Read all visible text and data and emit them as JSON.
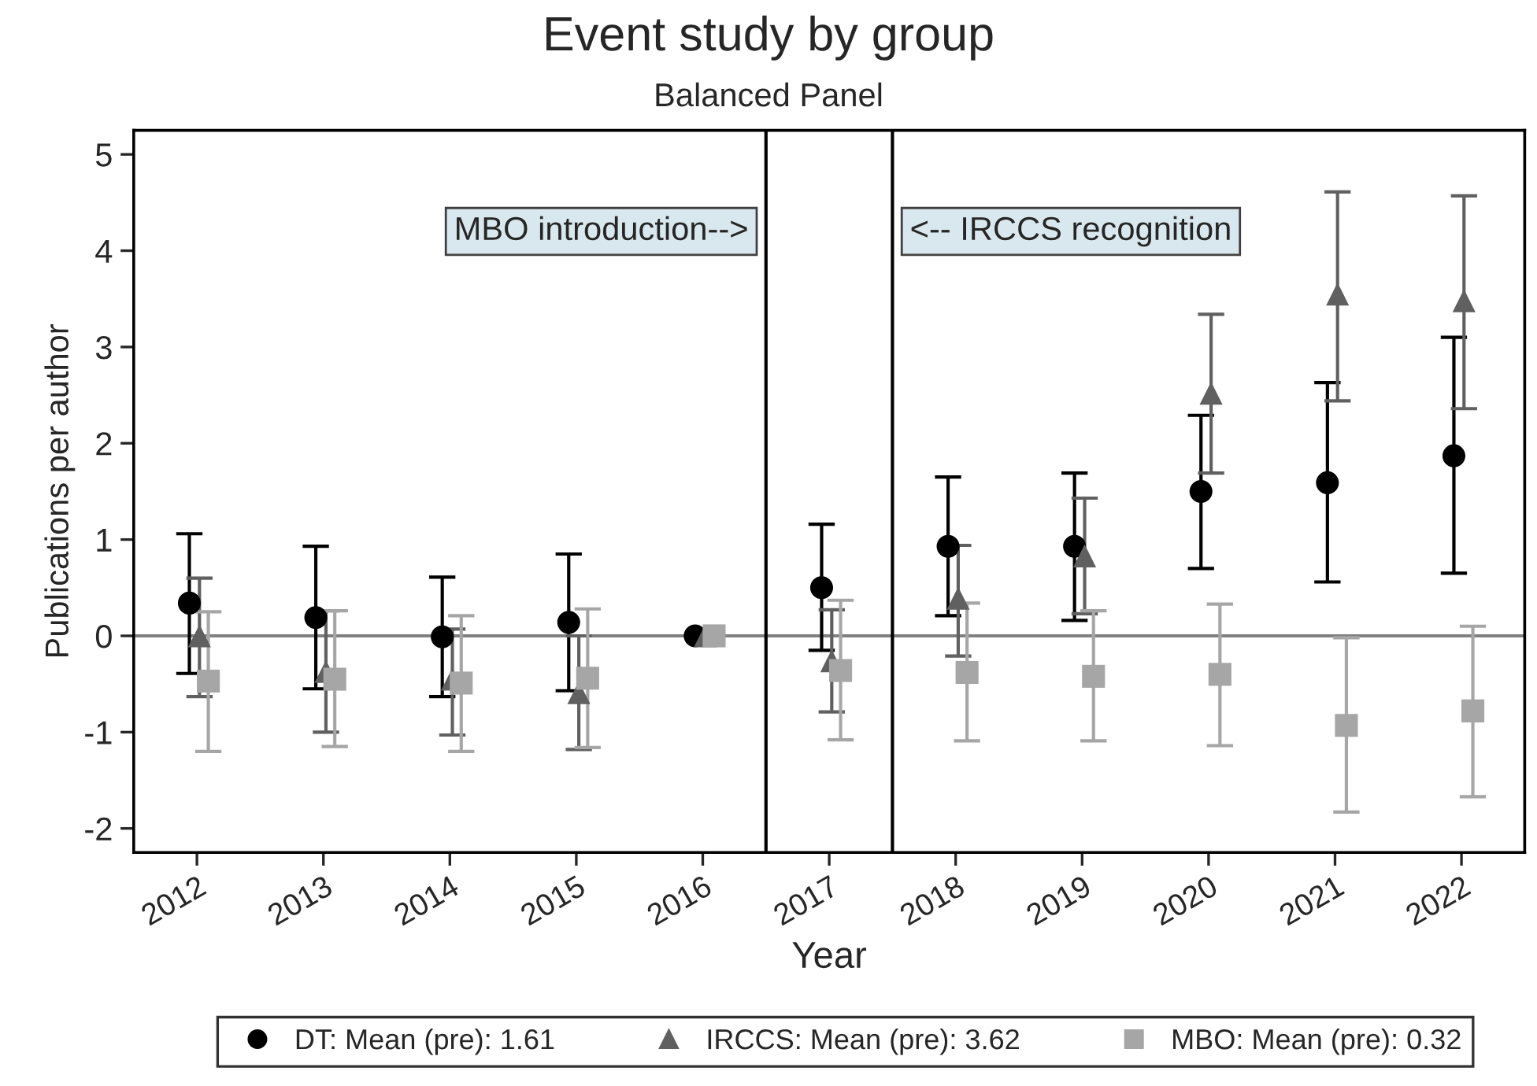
{
  "chart_data": {
    "type": "scatter",
    "title": "Event study by group",
    "subtitle": "Balanced Panel",
    "xlabel": "Year",
    "ylabel": "Publications per author",
    "series": [
      {
        "name": "DT: Mean (pre): 1.61",
        "color": "#000000",
        "marker": "circle",
        "x": [
          2011.94,
          2012.94,
          2013.94,
          2014.94,
          2015.94,
          2016.94,
          2017.94,
          2018.94,
          2019.94,
          2020.94,
          2021.94
        ],
        "values": [
          0.34,
          0.19,
          -0.01,
          0.14,
          0,
          0.5,
          0.93,
          0.93,
          1.5,
          1.59,
          1.87
        ],
        "errors": [
          [
            -0.39,
            1.06
          ],
          [
            -0.55,
            0.93
          ],
          [
            -0.63,
            0.61
          ],
          [
            -0.57,
            0.85
          ],
          null,
          [
            -0.15,
            1.16
          ],
          [
            0.21,
            1.65
          ],
          [
            0.16,
            1.69
          ],
          [
            0.7,
            2.29
          ],
          [
            0.56,
            2.63
          ],
          [
            0.65,
            3.1
          ]
        ]
      },
      {
        "name": "IRCCS: Mean (pre): 3.62",
        "color": "#606060",
        "marker": "triangle",
        "x": [
          2012.02,
          2013.02,
          2014.02,
          2015.02,
          2016.02,
          2017.02,
          2018.02,
          2019.02,
          2020.02,
          2021.02,
          2022.02
        ],
        "values": [
          0.0,
          -0.37,
          -0.45,
          -0.59,
          0,
          -0.26,
          0.39,
          0.83,
          2.52,
          3.55,
          3.48
        ],
        "errors": [
          [
            -0.63,
            0.6
          ],
          [
            -1.0,
            0.26
          ],
          [
            -1.03,
            0.07
          ],
          [
            -1.18,
            0.0
          ],
          null,
          [
            -0.79,
            0.27
          ],
          [
            -0.21,
            0.94
          ],
          [
            0.23,
            1.43
          ],
          [
            1.69,
            3.34
          ],
          [
            2.44,
            4.61
          ],
          [
            2.36,
            4.57
          ]
        ]
      },
      {
        "name": "MBO: Mean (pre): 0.32",
        "color": "#a6a6a6",
        "marker": "square",
        "x": [
          2012.09,
          2013.09,
          2014.09,
          2015.09,
          2016.09,
          2017.09,
          2018.09,
          2019.09,
          2020.09,
          2021.09,
          2022.09
        ],
        "values": [
          -0.47,
          -0.45,
          -0.49,
          -0.44,
          0,
          -0.36,
          -0.38,
          -0.42,
          -0.4,
          -0.93,
          -0.78
        ],
        "errors": [
          [
            -1.2,
            0.25
          ],
          [
            -1.15,
            0.26
          ],
          [
            -1.2,
            0.21
          ],
          [
            -1.16,
            0.28
          ],
          null,
          [
            -1.08,
            0.37
          ],
          [
            -1.09,
            0.34
          ],
          [
            -1.09,
            0.26
          ],
          [
            -1.14,
            0.33
          ],
          [
            -1.83,
            -0.02
          ],
          [
            -1.67,
            0.1
          ]
        ]
      }
    ],
    "xlim": [
      2011.5,
      2022.5
    ],
    "xticks": [
      2012,
      2013,
      2014,
      2015,
      2016,
      2017,
      2018,
      2019,
      2020,
      2021,
      2022
    ],
    "ylim": [
      -2.25,
      5.25
    ],
    "yticks": [
      -2,
      -1,
      0,
      1,
      2,
      3,
      4,
      5
    ],
    "ref_lines": [
      {
        "axis": "y",
        "value": 0,
        "color": "#808080"
      },
      {
        "axis": "x",
        "value": 2016.5,
        "color": "#000000"
      },
      {
        "axis": "x",
        "value": 2017.5,
        "color": "#000000"
      }
    ],
    "annotations": [
      {
        "text": "MBO introduction-->",
        "x": 2016.5,
        "y": 4.2
      },
      {
        "text": "<-- IRCCS recognition",
        "x": 2017.5,
        "y": 4.2
      }
    ],
    "grid": false,
    "legend": "bottom"
  }
}
